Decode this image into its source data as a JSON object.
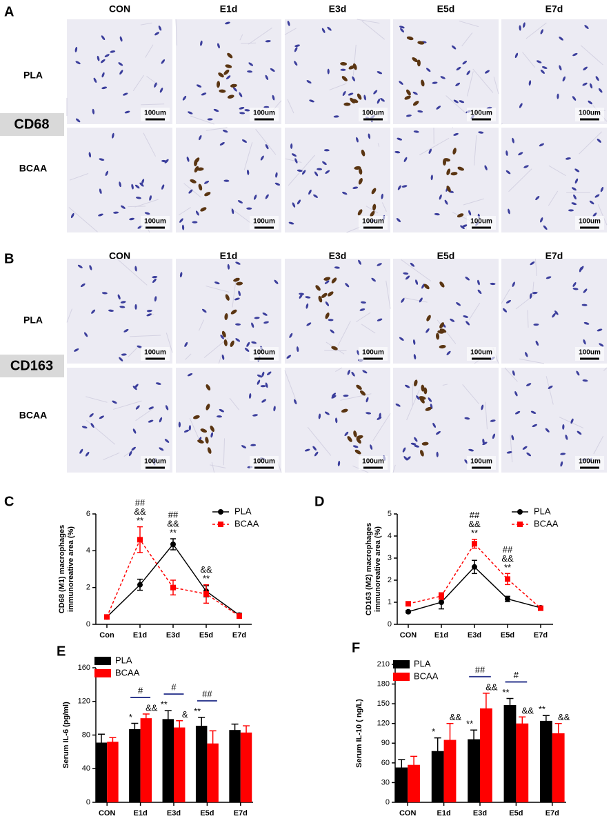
{
  "panels": [
    {
      "letter": "A",
      "columns": [
        "CON",
        "E1d",
        "E3d",
        "E5d",
        "E7d"
      ],
      "rows": [
        "PLA",
        "BCAA"
      ],
      "marker": "CD68",
      "scale_label": "100um"
    },
    {
      "letter": "B",
      "columns": [
        "CON",
        "E1d",
        "E3d",
        "E5d",
        "E7d"
      ],
      "rows": [
        "PLA",
        "BCAA"
      ],
      "marker": "CD163",
      "scale_label": "100um"
    }
  ],
  "chart_data": [
    {
      "type": "line",
      "panel": "C",
      "ylabel": [
        "CD68 (M1) macrophages",
        "immunoreative area (%)"
      ],
      "categories": [
        "Con",
        "E1d",
        "E3d",
        "E5d",
        "E7d"
      ],
      "ylim": [
        0,
        6
      ],
      "yticks": [
        0,
        2,
        4,
        6
      ],
      "legend": "upper right",
      "series": [
        {
          "name": "PLA",
          "color": "#000000",
          "marker": "circle",
          "linestyle": "solid",
          "values": [
            0.4,
            2.15,
            4.35,
            1.8,
            0.5
          ],
          "errors": [
            0.1,
            0.3,
            0.3,
            0.3,
            0.1
          ]
        },
        {
          "name": "BCAA",
          "color": "#ff0000",
          "marker": "square",
          "linestyle": "dashed",
          "values": [
            0.4,
            4.6,
            2.0,
            1.65,
            0.45
          ],
          "errors": [
            0.1,
            0.7,
            0.4,
            0.5,
            0.1
          ]
        }
      ],
      "annotations": [
        {
          "x": "E1d",
          "text": [
            "##",
            "&&",
            "**"
          ]
        },
        {
          "x": "E3d",
          "text": [
            "##",
            "&&",
            "**"
          ]
        },
        {
          "x": "E5d",
          "text": [
            "&&",
            "**"
          ]
        }
      ]
    },
    {
      "type": "line",
      "panel": "D",
      "ylabel": [
        "CD163 (M2) macrophages",
        "immunoreative area (%)"
      ],
      "categories": [
        "CON",
        "E1d",
        "E3d",
        "E5d",
        "E7d"
      ],
      "ylim": [
        0,
        5
      ],
      "yticks": [
        0,
        1,
        2,
        3,
        4,
        5
      ],
      "legend": "upper right",
      "series": [
        {
          "name": "PLA",
          "color": "#000000",
          "marker": "circle",
          "linestyle": "solid",
          "values": [
            0.57,
            1.0,
            2.6,
            1.15,
            0.75
          ],
          "errors": [
            0.05,
            0.3,
            0.3,
            0.12,
            0.05
          ]
        },
        {
          "name": "BCAA",
          "color": "#ff0000",
          "marker": "square",
          "linestyle": "dashed",
          "values": [
            0.93,
            1.28,
            3.65,
            2.05,
            0.73
          ],
          "errors": [
            0.05,
            0.15,
            0.2,
            0.25,
            0.05
          ]
        }
      ],
      "annotations": [
        {
          "x": "E3d",
          "text": [
            "##",
            "&&",
            "**"
          ]
        },
        {
          "x": "E5d",
          "text": [
            "##",
            "&&",
            "**"
          ]
        }
      ]
    },
    {
      "type": "bar",
      "panel": "E",
      "ylabel": [
        "Serum IL-6 (pg/ml)"
      ],
      "categories": [
        "CON",
        "E1d",
        "E3d",
        "E5d",
        "E7d"
      ],
      "ylim": [
        0,
        160
      ],
      "yticks": [
        0,
        40,
        80,
        120,
        160
      ],
      "legend": "upper left",
      "series": [
        {
          "name": "PLA",
          "color": "#000000",
          "values": [
            71,
            87,
            99,
            91,
            86
          ],
          "errors": [
            10,
            7,
            10,
            10,
            7
          ],
          "annotations": [
            null,
            "*",
            "**",
            "**",
            null
          ]
        },
        {
          "name": "BCAA",
          "color": "#ff0000",
          "values": [
            72,
            100,
            89,
            70,
            83
          ],
          "errors": [
            5,
            5,
            8,
            15,
            8
          ],
          "annotations": [
            null,
            "&&",
            "&",
            null,
            null
          ]
        }
      ],
      "brackets": [
        null,
        "#",
        "#",
        "##",
        null
      ]
    },
    {
      "type": "bar",
      "panel": "F",
      "ylabel": [
        "Serum IL-10 ( ng/L)"
      ],
      "categories": [
        "CON",
        "E1d",
        "E3d",
        "E5d",
        "E7d"
      ],
      "ylim": [
        0,
        210
      ],
      "yticks": [
        0,
        30,
        60,
        90,
        120,
        150,
        180,
        210
      ],
      "legend": "upper left",
      "series": [
        {
          "name": "PLA",
          "color": "#000000",
          "values": [
            53,
            78,
            96,
            148,
            124
          ],
          "errors": [
            12,
            20,
            14,
            10,
            8
          ],
          "annotations": [
            null,
            "*",
            "**",
            "**",
            "**"
          ]
        },
        {
          "name": "BCAA",
          "color": "#ff0000",
          "values": [
            57,
            95,
            143,
            120,
            105
          ],
          "errors": [
            13,
            25,
            23,
            10,
            15
          ],
          "annotations": [
            null,
            "&&",
            "&&",
            "&&",
            "&&"
          ]
        }
      ],
      "brackets": [
        null,
        null,
        "##",
        "#",
        null
      ]
    }
  ]
}
